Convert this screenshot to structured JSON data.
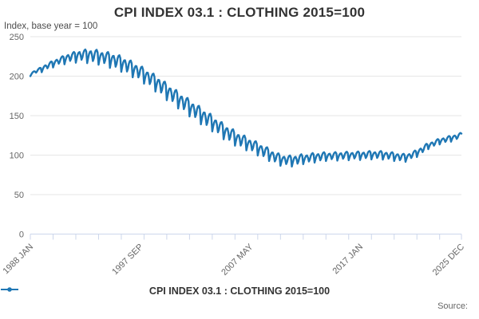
{
  "header": {
    "title": "CPI INDEX 03.1 : CLOTHING 2015=100",
    "subtitle": "Index, base year = 100"
  },
  "legend": {
    "label": "CPI INDEX 03.1 : CLOTHING 2015=100"
  },
  "source": {
    "label": "Source:"
  },
  "chart_data": {
    "type": "line",
    "title": "CPI INDEX 03.1 : CLOTHING 2015=100",
    "ylabel": "Index, base year = 100",
    "xlabel": "",
    "ylim": [
      0,
      250
    ],
    "y_ticks": [
      0,
      50,
      100,
      150,
      200,
      250
    ],
    "grid": true,
    "legend_position": "bottom",
    "x_start": "1988-01",
    "x_end": "2025-12",
    "x_tick_every_months": 24,
    "x_axis_labels": [
      {
        "month_index": 0,
        "label": "1988 JAN"
      },
      {
        "month_index": 116,
        "label": "1997 SEP"
      },
      {
        "month_index": 232,
        "label": "2007 MAY"
      },
      {
        "month_index": 348,
        "label": "2017 JAN"
      },
      {
        "month_index": 455,
        "label": "2025 DEC"
      }
    ],
    "colors": {
      "line": "#1f77b4",
      "grid": "#e6e6e6",
      "axis": "#ccd6eb",
      "tick_label": "#666666"
    },
    "series": [
      {
        "name": "CPI INDEX 03.1 : CLOTHING 2015=100",
        "color": "#1f77b4",
        "monthly_values_by_year": {
          "1988": [
            200.0,
            202.2,
            204.2,
            205.5,
            206.2,
            205.8,
            204.4,
            205.9,
            208.1,
            209.6,
            210.5,
            210.3
          ],
          "1989": [
            205.0,
            208.3,
            211.2,
            213.0,
            213.8,
            212.7,
            210.0,
            212.1,
            215.4,
            217.5,
            218.6,
            217.9
          ],
          "1990": [
            211.0,
            214.8,
            218.0,
            220.0,
            220.8,
            219.2,
            215.8,
            218.1,
            221.9,
            224.2,
            225.3,
            224.3
          ],
          "1991": [
            215.0,
            219.7,
            223.7,
            226.0,
            226.7,
            224.3,
            219.4,
            222.1,
            226.9,
            229.6,
            230.7,
            229.1
          ],
          "1992": [
            217.0,
            222.6,
            227.3,
            229.9,
            230.5,
            227.1,
            220.8,
            223.9,
            229.5,
            232.6,
            233.8,
            231.4
          ],
          "1993": [
            216.5,
            222.9,
            228.2,
            231.0,
            231.4,
            227.1,
            219.1,
            222.5,
            229.0,
            232.4,
            233.4,
            230.3
          ],
          "1994": [
            214.5,
            220.9,
            226.0,
            228.8,
            229.1,
            224.7,
            216.6,
            220.0,
            226.3,
            229.7,
            230.6,
            227.4
          ],
          "1995": [
            210.5,
            217.2,
            222.7,
            225.5,
            225.7,
            220.8,
            211.9,
            215.4,
            222.1,
            225.6,
            226.5,
            222.8
          ],
          "1996": [
            205.5,
            212.1,
            217.3,
            220.0,
            220.1,
            214.9,
            205.9,
            209.2,
            215.8,
            219.1,
            219.8,
            216.0
          ],
          "1997": [
            198.5,
            205.0,
            210.2,
            212.8,
            212.7,
            207.5,
            198.4,
            201.6,
            208.1,
            211.4,
            212.0,
            208.1
          ],
          "1998": [
            190.5,
            196.9,
            202.0,
            204.5,
            204.4,
            199.1,
            189.9,
            193.1,
            199.5,
            202.6,
            203.2,
            199.2
          ],
          "1999": [
            180.5,
            187.3,
            192.7,
            195.3,
            195.0,
            189.2,
            179.2,
            182.5,
            189.3,
            192.6,
            193.0,
            188.6
          ],
          "2000": [
            169.5,
            176.3,
            181.8,
            184.4,
            184.2,
            178.4,
            168.5,
            171.8,
            178.6,
            181.9,
            182.5,
            178.1
          ],
          "2001": [
            159.0,
            165.9,
            171.3,
            174.0,
            173.9,
            168.1,
            158.2,
            161.6,
            168.4,
            171.8,
            172.4,
            168.0
          ],
          "2002": [
            149.0,
            155.9,
            161.3,
            164.0,
            163.9,
            158.1,
            148.2,
            151.6,
            158.4,
            161.8,
            162.4,
            158.0
          ],
          "2003": [
            139.0,
            145.9,
            151.3,
            154.0,
            153.9,
            148.1,
            138.2,
            141.6,
            148.4,
            151.8,
            152.4,
            148.0
          ],
          "2004": [
            130.0,
            136.3,
            141.3,
            143.8,
            143.6,
            138.2,
            128.9,
            132.0,
            138.3,
            141.4,
            141.8,
            137.7
          ],
          "2005": [
            120.0,
            126.4,
            131.5,
            134.0,
            133.9,
            128.6,
            119.4,
            122.6,
            129.0,
            132.1,
            132.7,
            128.7
          ],
          "2006": [
            112.0,
            118.0,
            122.8,
            125.3,
            125.3,
            120.5,
            112.1,
            115.1,
            121.1,
            124.2,
            124.8,
            121.2
          ],
          "2007": [
            106.0,
            111.5,
            115.9,
            118.1,
            118.1,
            113.7,
            106.1,
            108.8,
            114.3,
            117.1,
            117.6,
            114.3
          ],
          "2008": [
            99.5,
            104.9,
            109.2,
            111.3,
            111.1,
            106.6,
            98.8,
            101.4,
            106.8,
            109.5,
            109.9,
            106.5
          ],
          "2009": [
            92.5,
            97.4,
            101.3,
            103.3,
            103.2,
            99.1,
            92.0,
            94.4,
            99.3,
            101.8,
            102.2,
            99.1
          ],
          "2010": [
            86.5,
            91.4,
            95.3,
            97.5,
            97.9,
            94.6,
            88.7,
            91.3,
            96.2,
            98.8,
            99.6,
            97.3
          ],
          "2011": [
            85.5,
            90.6,
            94.8,
            97.3,
            97.9,
            94.9,
            89.2,
            92.1,
            97.2,
            100.1,
            101.1,
            99.0
          ],
          "2012": [
            88.5,
            93.1,
            96.8,
            99.0,
            99.6,
            96.9,
            91.9,
            94.5,
            99.0,
            101.6,
            102.6,
            100.7
          ],
          "2013": [
            90.5,
            95.0,
            98.7,
            100.8,
            101.2,
            98.5,
            93.4,
            95.9,
            100.4,
            102.9,
            103.7,
            101.8
          ],
          "2014": [
            92.5,
            96.4,
            99.6,
            101.4,
            101.8,
            99.4,
            94.9,
            97.0,
            100.9,
            103.0,
            103.8,
            102.1
          ],
          "2015": [
            93.0,
            96.9,
            100.1,
            101.9,
            102.3,
            99.9,
            95.4,
            97.5,
            101.4,
            103.5,
            104.3,
            102.6
          ],
          "2016": [
            93.5,
            97.4,
            100.6,
            102.3,
            102.7,
            100.3,
            95.8,
            97.9,
            101.8,
            103.9,
            104.6,
            102.9
          ],
          "2017": [
            93.8,
            97.7,
            100.9,
            102.7,
            103.1,
            100.7,
            96.3,
            98.4,
            102.3,
            104.5,
            105.2,
            103.5
          ],
          "2018": [
            94.5,
            98.3,
            101.5,
            103.2,
            103.5,
            101.1,
            96.5,
            98.6,
            102.4,
            104.5,
            105.2,
            103.4
          ],
          "2019": [
            94.3,
            98.0,
            101.0,
            102.6,
            102.8,
            100.2,
            95.5,
            97.5,
            101.2,
            103.1,
            103.7,
            101.8
          ],
          "2020": [
            92.5,
            96.2,
            99.2,
            100.8,
            100.9,
            98.3,
            93.6,
            95.5,
            99.2,
            101.2,
            101.7,
            99.8
          ],
          "2021": [
            91.5,
            95.3,
            98.5,
            100.5,
            101.3,
            99.7,
            96.3,
            98.6,
            102.4,
            104.7,
            105.8,
            104.8
          ],
          "2022": [
            97.5,
            101.6,
            105.0,
            107.3,
            108.3,
            107.0,
            103.8,
            106.4,
            110.4,
            113.0,
            114.3,
            113.6
          ],
          "2023": [
            107.5,
            110.8,
            113.5,
            115.3,
            116.0,
            114.8,
            112.0,
            114.0,
            117.3,
            119.3,
            120.3,
            119.5
          ],
          "2024": [
            113.5,
            116.5,
            119.1,
            120.6,
            121.2,
            119.7,
            116.8,
            118.5,
            121.6,
            123.4,
            124.2,
            123.2
          ],
          "2025": [
            117.0,
            120.1,
            122.7,
            124.3,
            124.8,
            123.4,
            120.5,
            122.3,
            125.4,
            127.3,
            128.1,
            127.2
          ]
        }
      }
    ]
  }
}
